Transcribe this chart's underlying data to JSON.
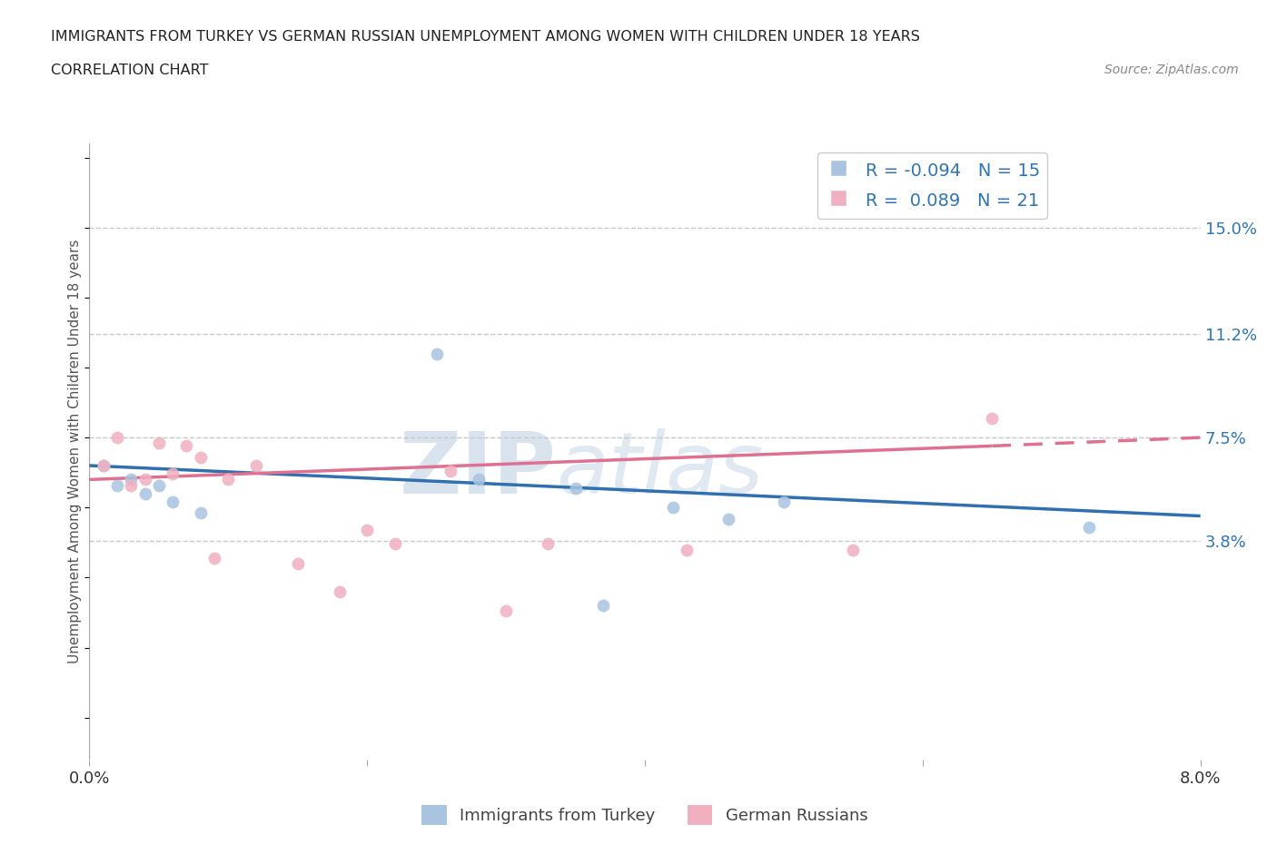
{
  "title_line1": "IMMIGRANTS FROM TURKEY VS GERMAN RUSSIAN UNEMPLOYMENT AMONG WOMEN WITH CHILDREN UNDER 18 YEARS",
  "title_line2": "CORRELATION CHART",
  "source": "Source: ZipAtlas.com",
  "ylabel": "Unemployment Among Women with Children Under 18 years",
  "xlim": [
    0.0,
    0.08
  ],
  "ylim": [
    -0.04,
    0.18
  ],
  "yticks": [
    0.038,
    0.075,
    0.112,
    0.15
  ],
  "ytick_labels": [
    "3.8%",
    "7.5%",
    "11.2%",
    "15.0%"
  ],
  "turkey_x": [
    0.001,
    0.002,
    0.003,
    0.004,
    0.005,
    0.006,
    0.008,
    0.025,
    0.028,
    0.035,
    0.037,
    0.042,
    0.046,
    0.05,
    0.072
  ],
  "turkey_y": [
    0.065,
    0.058,
    0.06,
    0.055,
    0.058,
    0.052,
    0.048,
    0.105,
    0.06,
    0.057,
    0.015,
    0.05,
    0.046,
    0.052,
    0.043
  ],
  "german_russian_x": [
    0.001,
    0.002,
    0.003,
    0.004,
    0.005,
    0.006,
    0.007,
    0.008,
    0.009,
    0.01,
    0.012,
    0.015,
    0.018,
    0.02,
    0.022,
    0.026,
    0.03,
    0.033,
    0.043,
    0.055,
    0.065
  ],
  "german_russian_y": [
    0.065,
    0.075,
    0.058,
    0.06,
    0.073,
    0.062,
    0.072,
    0.068,
    0.032,
    0.06,
    0.065,
    0.03,
    0.02,
    0.042,
    0.037,
    0.063,
    0.013,
    0.037,
    0.035,
    0.035,
    0.082
  ],
  "turkey_R": -0.094,
  "turkey_N": 15,
  "german_russian_R": 0.089,
  "german_russian_N": 21,
  "turkey_color": "#a8c4e0",
  "german_russian_color": "#f0b0c0",
  "turkey_line_color": "#3070b0",
  "german_russian_line_color": "#e07090",
  "watermark_zip": "ZIP",
  "watermark_atlas": "atlas",
  "legend_R_color": "#2e75b6",
  "background_color": "#ffffff",
  "grid_color": "#c8c8c8"
}
